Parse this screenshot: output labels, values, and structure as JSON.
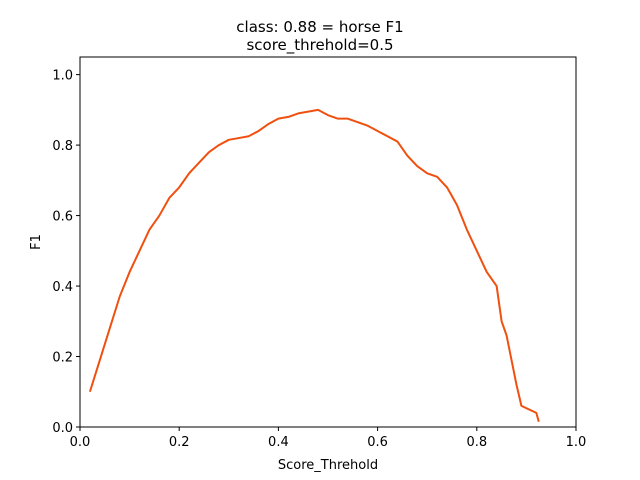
{
  "chart_data": {
    "type": "line",
    "title": "class: 0.88 = horse F1",
    "subtitle": "score_threhold=0.5",
    "x_label": "Score_Threhold",
    "y_label": "F1",
    "x": [
      0.02,
      0.04,
      0.06,
      0.08,
      0.1,
      0.12,
      0.14,
      0.16,
      0.18,
      0.2,
      0.22,
      0.24,
      0.26,
      0.28,
      0.3,
      0.32,
      0.34,
      0.36,
      0.38,
      0.4,
      0.42,
      0.44,
      0.46,
      0.48,
      0.5,
      0.52,
      0.54,
      0.56,
      0.58,
      0.6,
      0.62,
      0.64,
      0.66,
      0.68,
      0.7,
      0.72,
      0.74,
      0.76,
      0.78,
      0.8,
      0.82,
      0.84,
      0.85,
      0.86,
      0.87,
      0.88,
      0.89,
      0.92,
      0.925
    ],
    "series": [
      {
        "name": "F1",
        "color": "#f0500f",
        "values": [
          0.1,
          0.19,
          0.28,
          0.37,
          0.44,
          0.5,
          0.56,
          0.6,
          0.65,
          0.68,
          0.72,
          0.75,
          0.78,
          0.8,
          0.815,
          0.82,
          0.825,
          0.84,
          0.86,
          0.875,
          0.88,
          0.89,
          0.895,
          0.9,
          0.885,
          0.875,
          0.875,
          0.865,
          0.855,
          0.84,
          0.825,
          0.81,
          0.77,
          0.74,
          0.72,
          0.71,
          0.68,
          0.63,
          0.56,
          0.5,
          0.44,
          0.4,
          0.3,
          0.26,
          0.19,
          0.12,
          0.06,
          0.04,
          0.015
        ]
      }
    ],
    "xlim": [
      0,
      1
    ],
    "ylim": [
      0,
      1.05
    ],
    "xticks": [
      {
        "value": 0,
        "label": "0.0"
      },
      0.2,
      0.4,
      0.6,
      0.8,
      {
        "value": 1,
        "label": "1.0"
      }
    ],
    "yticks": [
      {
        "value": 0,
        "label": "0.0"
      },
      0.2,
      0.4,
      0.6,
      0.8,
      {
        "value": 1,
        "label": "1.0"
      }
    ],
    "grid": false
  }
}
